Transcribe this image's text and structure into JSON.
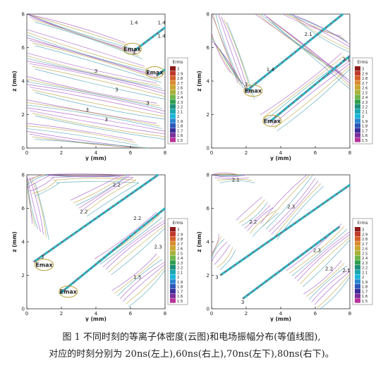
{
  "figure": {
    "caption_line1": "图 1   不同时刻的等离子体密度(云图)和电场振幅分布(等值线图),",
    "caption_line2": "对应的时刻分别为 20ns(左上),60ns(右上),70ns(左下),80ns(右下)。"
  },
  "colors": {
    "contour_purple": "#a04fc0",
    "contour_olive": "#b9a13a",
    "contour_teal": "#3e9db2",
    "plasma_cyan": "#1fb6dd",
    "plasma_green": "#52b85a",
    "plasma_red": "#d24a3a"
  },
  "colorbar": {
    "title": "Erms",
    "ticks": [
      "3",
      "2.9",
      "2.8",
      "2.7",
      "2.6",
      "2.5",
      "2.4",
      "2.3",
      "2.2",
      "2.1",
      "2",
      "1.9",
      "1.8",
      "1.7",
      "1.6",
      "1.5"
    ],
    "swatch_colors": [
      "#8e1b1b",
      "#c0392b",
      "#d35f2a",
      "#d98c2e",
      "#c9a630",
      "#a6b23a",
      "#6fb54a",
      "#2f9f4f",
      "#1e8f7c",
      "#1aa7b0",
      "#1bb6d8",
      "#2b86d0",
      "#2f57b8",
      "#3a2f9a",
      "#7a2f9a",
      "#b8329a"
    ]
  },
  "panels": [
    {
      "time": "20ns",
      "axes": {
        "xlabel": "y (mm)",
        "ylabel": "z (mm)",
        "xticks": [
          "0",
          "2",
          "4",
          "6",
          "8"
        ],
        "yticks": [
          "8",
          "6",
          "4",
          "2",
          "0"
        ]
      },
      "labels": [
        {
          "text": "Emax"
        },
        {
          "text": "Emax"
        },
        {
          "text": "1.4"
        },
        {
          "text": "1.4"
        },
        {
          "text": "1.4"
        },
        {
          "text": "3"
        },
        {
          "text": "3"
        },
        {
          "text": "3"
        },
        {
          "text": "3"
        },
        {
          "text": "3"
        },
        {
          "text": "3"
        }
      ]
    },
    {
      "time": "60ns",
      "axes": {
        "xlabel": "y (mm)",
        "ylabel": "z (mm)",
        "xticks": [
          "0",
          "2",
          "4",
          "6",
          "8"
        ],
        "yticks": [
          "8",
          "6",
          "4",
          "2",
          "0"
        ]
      },
      "labels": [
        {
          "text": "Emax"
        },
        {
          "text": "Emax"
        },
        {
          "text": "2.1"
        },
        {
          "text": "2.1"
        },
        {
          "text": "1.4"
        },
        {
          "text": "3"
        }
      ]
    },
    {
      "time": "70ns",
      "axes": {
        "xlabel": "y (mm)",
        "ylabel": "z (mm)",
        "xticks": [
          "0",
          "2",
          "4",
          "6",
          "8"
        ],
        "yticks": [
          "8",
          "6",
          "4",
          "2",
          "0"
        ]
      },
      "labels": [
        {
          "text": "Emax"
        },
        {
          "text": "Emax"
        },
        {
          "text": "2.2"
        },
        {
          "text": "2.2"
        },
        {
          "text": "2.2"
        },
        {
          "text": "2.3"
        },
        {
          "text": "1.5"
        },
        {
          "text": "3"
        }
      ]
    },
    {
      "time": "80ns",
      "axes": {
        "xlabel": "y (mm)",
        "ylabel": "z (mm)",
        "xticks": [
          "0",
          "2",
          "4",
          "6",
          "8"
        ],
        "yticks": [
          "8",
          "6",
          "4",
          "2",
          "0"
        ]
      },
      "labels": [
        {
          "text": "2.1"
        },
        {
          "text": "2.3"
        },
        {
          "text": "2.2"
        },
        {
          "text": "2.3"
        },
        {
          "text": "2.2"
        },
        {
          "text": "2.1"
        },
        {
          "text": "3"
        },
        {
          "text": "3"
        }
      ]
    }
  ]
}
